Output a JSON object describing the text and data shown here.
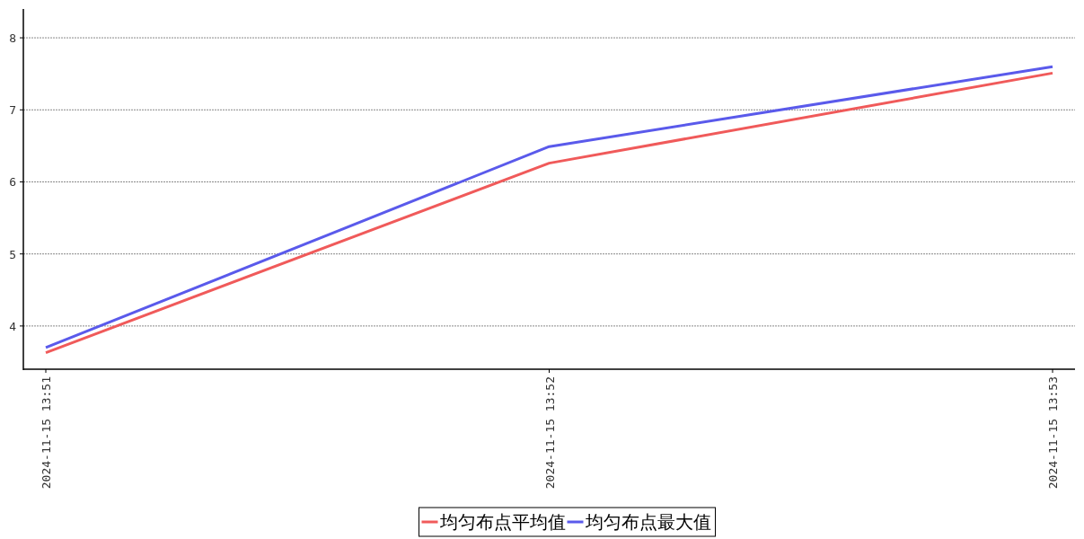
{
  "chart_data": {
    "type": "line",
    "categories": [
      "2024-11-15 13:51",
      "2024-11-15 13:52",
      "2024-11-15 13:53"
    ],
    "series": [
      {
        "name": "均匀布点平均值",
        "color": "#f05a5a",
        "values": [
          3.63,
          6.26,
          7.51
        ]
      },
      {
        "name": "均匀布点最大值",
        "color": "#5a5aeb",
        "values": [
          3.7,
          6.49,
          7.6
        ]
      }
    ],
    "ylim": [
      3.4,
      8.4
    ],
    "yticks": [
      4,
      5,
      6,
      7,
      8
    ],
    "grid": "y",
    "legend": "bottom",
    "line_style": "solid"
  }
}
